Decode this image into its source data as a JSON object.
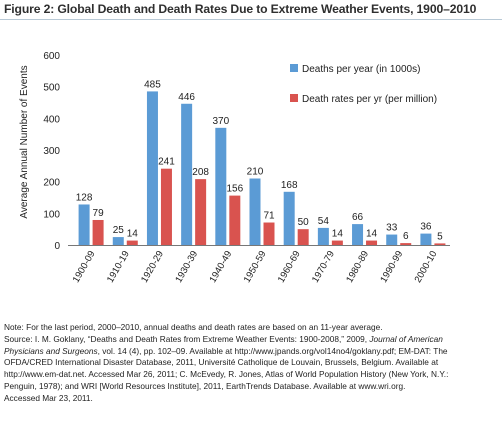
{
  "title": "Figure 2: Global Death and Death Rates Due to Extreme Weather Events, 1900–2010",
  "colors": {
    "deaths_bar": "#5b9bd5",
    "rates_bar": "#d9534f",
    "axis": "#777777",
    "text": "#222222"
  },
  "chart_data": {
    "type": "bar",
    "categories": [
      "1900-09",
      "1910-19",
      "1920-29",
      "1930-39",
      "1940-49",
      "1950-59",
      "1960-69",
      "1970-79",
      "1980-89",
      "1990-99",
      "2000-10"
    ],
    "series": [
      {
        "name": "Deaths per year (in 1000s)",
        "values": [
          128,
          25,
          485,
          446,
          370,
          210,
          168,
          54,
          66,
          33,
          36
        ],
        "color": "#5b9bd5"
      },
      {
        "name": "Death rates per yr (per million)",
        "values": [
          79,
          14,
          241,
          208,
          156,
          71,
          50,
          14,
          14,
          6,
          5
        ],
        "color": "#d9534f"
      }
    ],
    "title": "",
    "xlabel": "",
    "ylabel": "Average Annual Number of Events",
    "ylim": [
      0,
      600
    ],
    "yticks": [
      0,
      100,
      200,
      300,
      400,
      500,
      600
    ],
    "grid": false,
    "legend_position": "top-right"
  },
  "notes": {
    "line1": "Note: For the last period, 2000–2010, annual deaths and death rates are based on an 11-year average.",
    "line2_a": "Source: I. M. Goklany, “Deaths and Death Rates from Extreme Weather Events: 1900-2008,” 2009, ",
    "line2_b": "Journal of American",
    "line3_a": "Physicians and Surgeons",
    "line3_b": ", vol. 14 (4), pp. 102–09. Available at http://www.jpands.org/vol14no4/goklany.pdf; EM-DAT: The",
    "line4": "OFDA/CRED International Disaster Database, 2011, Université Catholique de Louvain, Brussels, Belgium. Available at",
    "line5": "http://www.em-dat.net. Accessed Mar 26, 2011; C. McEvedy, R. Jones,  Atlas of World Population History (New York, N.Y.:",
    "line6": "Penguin, 1978); and WRI [World Resources Institute], 2011, EarthTrends Database. Available at www.wri.org.",
    "line7": "Accessed Mar 23, 2011."
  }
}
